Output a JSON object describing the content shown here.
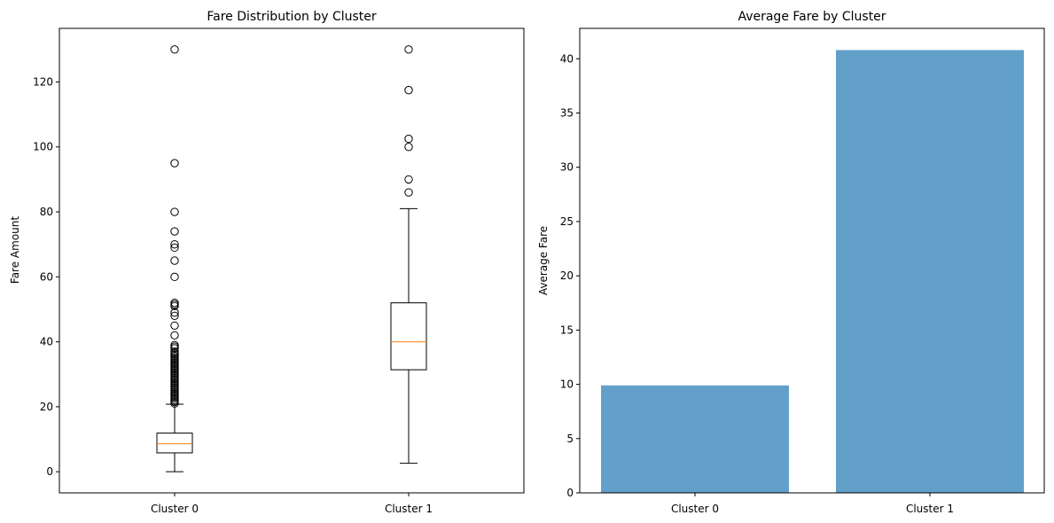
{
  "chart_data": [
    {
      "type": "box",
      "title": "Fare Distribution by Cluster",
      "xlabel": "",
      "ylabel": "Fare Amount",
      "ylim": [
        -6.5,
        136.5
      ],
      "yticks": [
        0,
        20,
        40,
        60,
        80,
        100,
        120
      ],
      "grid": false,
      "categories": [
        "Cluster 0",
        "Cluster 1"
      ],
      "boxes": [
        {
          "name": "Cluster 0",
          "whisker_low": 0,
          "q1": 5.8,
          "median": 8.6,
          "q3": 11.9,
          "whisker_high": 20.8,
          "outliers": [
            130,
            95,
            80,
            74,
            70,
            69,
            65,
            60,
            52,
            51.5,
            51,
            49,
            48,
            45,
            42,
            39,
            38.5,
            38,
            37,
            36.5,
            36,
            35.5,
            35,
            34.5,
            34,
            33.5,
            33,
            32.5,
            32,
            31.5,
            31,
            30.5,
            30,
            29.5,
            29,
            28.5,
            28,
            27.5,
            27,
            26.5,
            26,
            25.5,
            25,
            24.5,
            24,
            23.5,
            23,
            22.5,
            22,
            21.5,
            21
          ]
        },
        {
          "name": "Cluster 1",
          "whisker_low": 2.6,
          "q1": 31.4,
          "median": 40.0,
          "q3": 52.0,
          "whisker_high": 81.0,
          "outliers": [
            130,
            117.5,
            102.5,
            100,
            90,
            86
          ]
        }
      ],
      "colors": {
        "box": "#000000",
        "median": "#ff7f0e"
      }
    },
    {
      "type": "bar",
      "title": "Average Fare by Cluster",
      "xlabel": "",
      "ylabel": "Average Fare",
      "ylim": [
        0,
        42.8
      ],
      "yticks": [
        0,
        5,
        10,
        15,
        20,
        25,
        30,
        35,
        40
      ],
      "grid": false,
      "categories": [
        "Cluster 0",
        "Cluster 1"
      ],
      "values": [
        9.9,
        40.8
      ],
      "colors": {
        "bar": "#1f77b4"
      }
    }
  ]
}
